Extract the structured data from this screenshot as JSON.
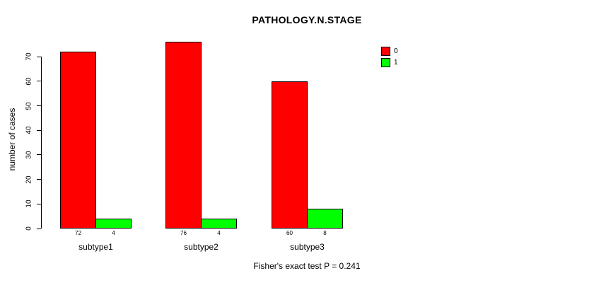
{
  "chart_data": {
    "type": "bar",
    "title": "PATHOLOGY.N.STAGE",
    "ylabel": "number of cases",
    "xlabel": "",
    "categories": [
      "subtype1",
      "subtype2",
      "subtype3"
    ],
    "series": [
      {
        "name": "0",
        "color": "#ff0000",
        "values": [
          72,
          76,
          60
        ]
      },
      {
        "name": "1",
        "color": "#00ff00",
        "values": [
          4,
          4,
          8
        ]
      }
    ],
    "bar_value_labels": [
      [
        72,
        4
      ],
      [
        76,
        4
      ],
      [
        60,
        8
      ]
    ],
    "yticks": [
      0,
      10,
      20,
      30,
      40,
      50,
      60,
      70
    ],
    "ylim": [
      0,
      70
    ],
    "grid": false,
    "legend_position": "top-right",
    "annotation": "Fisher's exact test P = 0.241"
  },
  "colors": {
    "background": "#ffffff",
    "axis": "#000000",
    "text": "#000000",
    "bar_border": "#000000",
    "series0": "#ff0000",
    "series1": "#00ff00"
  }
}
